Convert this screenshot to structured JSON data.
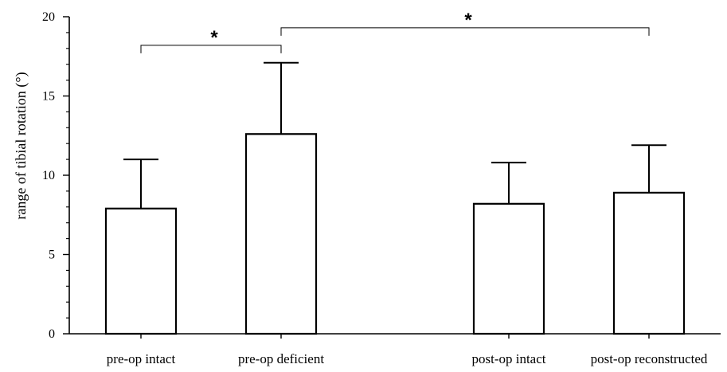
{
  "chart_data": {
    "type": "bar",
    "title": "",
    "xlabel": "",
    "ylabel": "range of tibial rotation (°)",
    "ylim": [
      0,
      20
    ],
    "yticks": [
      0,
      5,
      10,
      15,
      20
    ],
    "y_minor_step": 1,
    "grid": false,
    "legend": "none",
    "categories": [
      "pre-op intact",
      "pre-op deficient",
      "post-op intact",
      "post-op reconstructed"
    ],
    "values": [
      7.9,
      12.6,
      8.2,
      8.9
    ],
    "error_upper": [
      3.1,
      4.5,
      2.6,
      3.0
    ],
    "bar_fill": "#ffffff",
    "bar_edge": "#000000",
    "significance": [
      {
        "from": 0,
        "to": 1,
        "label": "*",
        "y": 18.2
      },
      {
        "from": 1,
        "to": 3,
        "label": "*",
        "y": 19.3
      }
    ]
  }
}
